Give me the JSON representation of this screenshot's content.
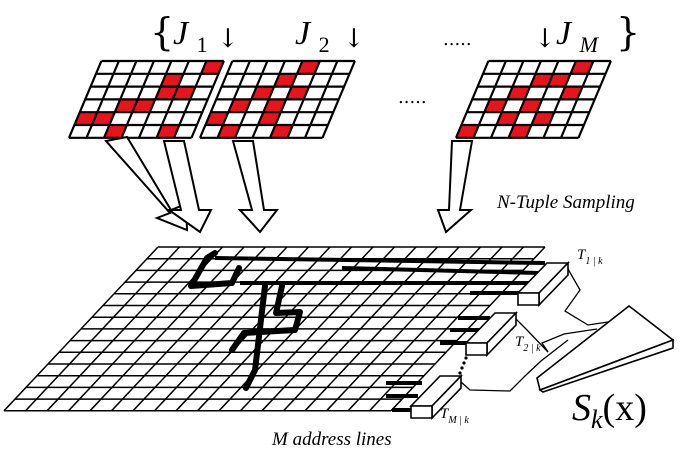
{
  "header": {
    "brace_open": "{",
    "brace_close": "}",
    "ellipsis_top": ".....",
    "ellipsis_mid": ".....",
    "arrow_down": "↓",
    "tuples": [
      {
        "sym": "J",
        "sub": "1"
      },
      {
        "sym": "J",
        "sub": "2"
      },
      {
        "sym": "J",
        "sub": "M"
      }
    ]
  },
  "labels": {
    "sampling": "N-Tuple Sampling",
    "address_lines": "M address lines",
    "output": {
      "sym": "S",
      "sub": "k",
      "arg": "(x)"
    },
    "rams": [
      {
        "sym": "T",
        "sub": "1 | k"
      },
      {
        "sym": "T",
        "sub": "2 | k"
      },
      {
        "sym": "T",
        "sub": "M | k"
      }
    ]
  },
  "colors": {
    "sampled_cell": "#e8141d",
    "grid_line": "#000000",
    "background": "#ffffff"
  }
}
